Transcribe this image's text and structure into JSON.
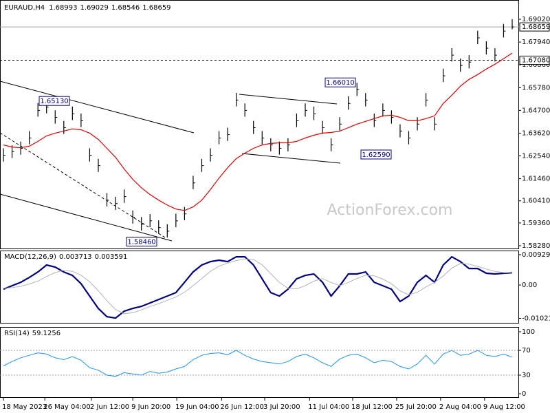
{
  "chart_data": [
    {
      "type": "ohlc",
      "title": "EURAUD,H4",
      "last_open": 1.68993,
      "bar_color": "#000000",
      "high": [
        1.629,
        1.6305,
        1.6322,
        1.6372,
        1.6505,
        1.6513,
        1.647,
        1.642,
        1.6488,
        1.6455,
        1.629,
        1.624,
        1.6078,
        1.606,
        1.6095,
        1.5995,
        1.5964,
        1.5978,
        1.5948,
        1.593,
        1.598,
        1.6012,
        1.616,
        1.624,
        1.629,
        1.6372,
        1.6388,
        1.6553,
        1.6503,
        1.642,
        1.6372,
        1.6338,
        1.6322,
        1.6338,
        1.6455,
        1.6503,
        1.6488,
        1.642,
        1.6338,
        1.6438,
        1.6537,
        1.6601,
        1.6552,
        1.6455,
        1.6503,
        1.647,
        1.6404,
        1.6372,
        1.6438,
        1.6552,
        1.6438,
        1.6668,
        1.6765,
        1.6716,
        1.6732,
        1.6848,
        1.6798,
        1.6765,
        1.688,
        1.69029
      ],
      "low": [
        1.6227,
        1.6244,
        1.626,
        1.6309,
        1.644,
        1.6456,
        1.6407,
        1.6358,
        1.6424,
        1.6391,
        1.6227,
        1.6178,
        1.6014,
        1.5998,
        1.6031,
        1.5933,
        1.59,
        1.5916,
        1.5884,
        1.5867,
        1.5916,
        1.5949,
        1.6096,
        1.6178,
        1.6227,
        1.6309,
        1.6325,
        1.6489,
        1.644,
        1.6358,
        1.6309,
        1.6276,
        1.626,
        1.6276,
        1.6391,
        1.644,
        1.6424,
        1.6358,
        1.6276,
        1.6375,
        1.6473,
        1.6538,
        1.6489,
        1.6391,
        1.644,
        1.6407,
        1.6342,
        1.6309,
        1.6375,
        1.6489,
        1.6375,
        1.6604,
        1.6702,
        1.6653,
        1.6669,
        1.6784,
        1.6735,
        1.6702,
        1.6816,
        1.68546
      ],
      "close": [
        1.6257,
        1.6274,
        1.629,
        1.6339,
        1.647,
        1.6486,
        1.6437,
        1.6388,
        1.6454,
        1.6421,
        1.6257,
        1.6208,
        1.6044,
        1.6028,
        1.6061,
        1.5963,
        1.593,
        1.5946,
        1.5914,
        1.5897,
        1.5946,
        1.5979,
        1.6126,
        1.6208,
        1.6257,
        1.6339,
        1.6355,
        1.6519,
        1.647,
        1.6388,
        1.6339,
        1.6306,
        1.629,
        1.6306,
        1.6421,
        1.647,
        1.6454,
        1.6388,
        1.6306,
        1.6405,
        1.6503,
        1.6568,
        1.6519,
        1.6421,
        1.647,
        1.6437,
        1.6372,
        1.6339,
        1.6405,
        1.6519,
        1.6405,
        1.6634,
        1.6732,
        1.6683,
        1.6699,
        1.6814,
        1.6765,
        1.6732,
        1.6846,
        1.68659
      ],
      "ma": {
        "color": "#e00000",
        "values": [
          1.6306,
          1.6296,
          1.6293,
          1.63,
          1.6323,
          1.6349,
          1.6362,
          1.6372,
          1.6382,
          1.6378,
          1.6362,
          1.6332,
          1.629,
          1.6247,
          1.6192,
          1.6143,
          1.6103,
          1.6071,
          1.6044,
          1.6021,
          1.6002,
          1.5995,
          1.6012,
          1.6044,
          1.6094,
          1.6149,
          1.6198,
          1.6241,
          1.6267,
          1.629,
          1.6306,
          1.6313,
          1.6316,
          1.6316,
          1.6323,
          1.6339,
          1.6352,
          1.6362,
          1.6365,
          1.6372,
          1.6388,
          1.6405,
          1.6418,
          1.6431,
          1.6444,
          1.6447,
          1.6437,
          1.6421,
          1.6421,
          1.6431,
          1.6444,
          1.6503,
          1.6542,
          1.6585,
          1.6617,
          1.664,
          1.6666,
          1.6689,
          1.6715,
          1.6742
        ]
      },
      "ylim": [
        1.58116,
        1.69936
      ],
      "yticks": [
        {
          "value": 1.6902,
          "label": "1.69020"
        },
        {
          "value": 1.6794,
          "label": "1.67940"
        },
        {
          "value": 1.6686,
          "label": "1.66860"
        },
        {
          "value": 1.6578,
          "label": "1.65780"
        },
        {
          "value": 1.647,
          "label": "1.64700"
        },
        {
          "value": 1.6362,
          "label": "1.63620"
        },
        {
          "value": 1.6254,
          "label": "1.62540"
        },
        {
          "value": 1.6146,
          "label": "1.61460"
        },
        {
          "value": 1.6041,
          "label": "1.60410"
        },
        {
          "value": 1.5936,
          "label": "1.59360"
        },
        {
          "value": 1.5828,
          "label": "1.58280"
        }
      ],
      "levels": [
        {
          "value": 1.6708,
          "label": "1.67080"
        }
      ],
      "annotations": [
        {
          "value": 1.6513,
          "label": "1.65130"
        },
        {
          "value": 1.5846,
          "label": "1.58460"
        },
        {
          "value": 1.6601,
          "label": "1.66010"
        },
        {
          "value": 1.6259,
          "label": "1.62590"
        }
      ],
      "xticks": [
        {
          "value": 0,
          "label": "18 May 2023"
        },
        {
          "value": 4.8,
          "label": "26 May 04:00"
        },
        {
          "value": 10.2,
          "label": "2 Jun 12:00"
        },
        {
          "value": 15.0,
          "label": "9 Jun 20:00"
        },
        {
          "value": 20.1,
          "label": "19 Jun 04:00"
        },
        {
          "value": 25.3,
          "label": "26 Jun 12:00"
        },
        {
          "value": 30.3,
          "label": "3 Jul 20:00"
        },
        {
          "value": 35.5,
          "label": "11 Jul 04:00"
        },
        {
          "value": 40.5,
          "label": "18 Jul 12:00"
        },
        {
          "value": 45.6,
          "label": "25 Jul 20:00"
        },
        {
          "value": 50.7,
          "label": "2 Aug 04:00"
        },
        {
          "value": 55.8,
          "label": "9 Aug 12:00"
        }
      ],
      "watermark": "ActionForex.com"
    },
    {
      "type": "macd",
      "title": "MACD(12,26,9)",
      "series": [
        {
          "color": "#000080",
          "values": [
            -0.00127,
            -0.00021,
            0.00084,
            0.00232,
            0.00401,
            0.00612,
            0.00549,
            0.00401,
            0.00295,
            0.00042,
            -0.00338,
            -0.00717,
            -0.00971,
            -0.01013,
            -0.00802,
            -0.00717,
            -0.00654,
            -0.00549,
            -0.00443,
            -0.00338,
            -0.00232,
            0.00084,
            0.00401,
            0.00612,
            0.00717,
            0.0076,
            0.00717,
            0.00865,
            0.00865,
            0.00612,
            0.0019,
            -0.00232,
            -0.00338,
            -0.00127,
            0.0019,
            0.00295,
            0.00338,
            0.00084,
            -0.00338,
            -0.00021,
            0.00338,
            0.00338,
            0.00401,
            0.00084,
            -0.00021,
            -0.00127,
            -0.00506,
            -0.00338,
            0.00084,
            0.00295,
            0.00084,
            0.00612,
            0.00865,
            0.00717,
            0.00506,
            0.00506,
            0.00359,
            0.00338,
            0.00359,
            0.003713
          ]
        },
        {
          "color": "#b4b4b4",
          "values": [
            -0.001,
            -0.0008,
            -0.0004,
            0.0003,
            0.0012,
            0.0026,
            0.0038,
            0.0045,
            0.0042,
            0.003,
            0.001,
            -0.0018,
            -0.0048,
            -0.0075,
            -0.0088,
            -0.0085,
            -0.0076,
            -0.0066,
            -0.0057,
            -0.0047,
            -0.0037,
            -0.0022,
            -0.0002,
            0.002,
            0.0042,
            0.0058,
            0.0067,
            0.0075,
            0.008,
            0.0078,
            0.0062,
            0.0035,
            0.0008,
            -0.001,
            -0.0012,
            -0.0002,
            0.0012,
            0.002,
            0.0008,
            -0.0002,
            0.0008,
            0.002,
            0.003,
            0.0028,
            0.0018,
            0.0004,
            -0.0018,
            -0.003,
            -0.0022,
            -0.0006,
            0.0008,
            0.0028,
            0.0052,
            0.0066,
            0.0064,
            0.0057,
            0.0049,
            0.0042,
            0.0038,
            0.003591
          ]
        }
      ],
      "ylim": [
        -0.0118,
        0.01056
      ],
      "yticks": [
        0.009291,
        {
          "value": 0,
          "label": "0.00"
        },
        -0.010211
      ]
    },
    {
      "type": "line",
      "title": "RSI(14)",
      "color": "#1e90ff",
      "values": [
        45,
        52,
        58,
        62,
        66,
        64,
        58,
        55,
        60,
        54,
        42,
        38,
        30,
        28,
        34,
        32,
        30,
        36,
        33,
        35,
        40,
        44,
        55,
        62,
        65,
        66,
        63,
        70,
        62,
        56,
        52,
        50,
        48,
        52,
        60,
        64,
        58,
        50,
        44,
        56,
        62,
        64,
        58,
        50,
        54,
        52,
        44,
        40,
        48,
        62,
        48,
        64,
        70,
        62,
        64,
        70,
        62,
        60,
        64,
        59.1256
      ],
      "ylim": [
        -6.7,
        106.7
      ],
      "yticks": [
        100,
        70,
        30,
        0
      ],
      "levels": [
        70,
        30
      ]
    }
  ]
}
